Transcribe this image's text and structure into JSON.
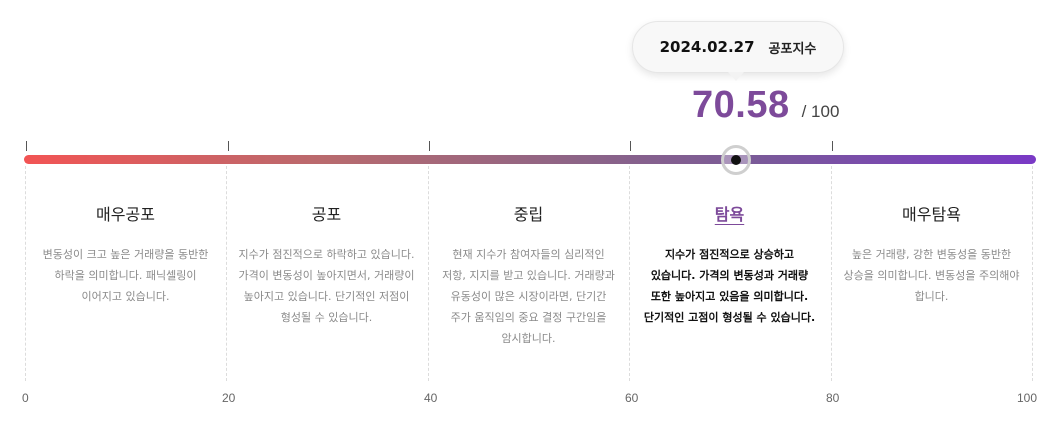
{
  "tooltip": {
    "date": "2024.02.27",
    "label": "공포지수"
  },
  "score": {
    "value": "70.58",
    "max_text": "/ 100",
    "value_numeric": 70.58,
    "color": "#7d4a9a"
  },
  "gauge": {
    "min": 0,
    "max": 100,
    "gradient": [
      "#f25454",
      "#b86a6e",
      "#8c6487",
      "#7a5a98",
      "#7a39c6"
    ]
  },
  "axis": {
    "labels": [
      "0",
      "20",
      "40",
      "60",
      "80",
      "100"
    ]
  },
  "zones": [
    {
      "title": "매우공포",
      "description": "변동성이 크고 높은 거래량을 동반한 하락을 의미합니다. 패닉셀링이 이어지고 있습니다.",
      "active": false
    },
    {
      "title": "공포",
      "description": "지수가 점진적으로 하락하고 있습니다. 가격이 변동성이 높아지면서, 거래량이 높아지고 있습니다. 단기적인 저점이 형성될 수 있습니다.",
      "active": false
    },
    {
      "title": "중립",
      "description": "현재 지수가 참여자들의 심리적인 저항, 지지를 받고 있습니다. 거래량과 유동성이 많은 시장이라면, 단기간 주가 움직임의 중요 결정 구간임을 암시합니다.",
      "active": false
    },
    {
      "title": "탐욕",
      "description": "지수가 점진적으로 상승하고 있습니다. 가격의 변동성과 거래량 또한 높아지고 있음을 의미합니다. 단기적인 고점이 형성될 수 있습니다.",
      "active": true
    },
    {
      "title": "매우탐욕",
      "description": "높은 거래량, 강한 변동성을 동반한 상승을 의미합니다. 변동성을 주의해야 합니다.",
      "active": false
    }
  ]
}
